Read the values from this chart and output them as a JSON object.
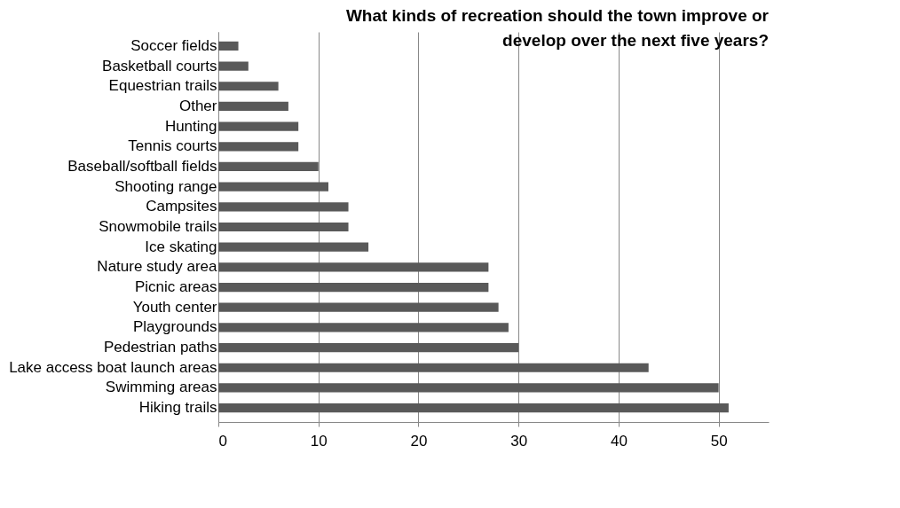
{
  "chart_data": {
    "type": "bar",
    "orientation": "horizontal",
    "title": "What kinds of recreation should the town improve or develop over the next five years?",
    "categories": [
      "Soccer fields",
      "Basketball courts",
      "Equestrian trails",
      "Other",
      "Hunting",
      "Tennis courts",
      "Baseball/softball fields",
      "Shooting range",
      "Campsites",
      "Snowmobile trails",
      "Ice skating",
      "Nature study area",
      "Picnic areas",
      "Youth center",
      "Playgrounds",
      "Pedestrian paths",
      "Lake access boat launch areas",
      "Swimming areas",
      "Hiking trails"
    ],
    "values": [
      2,
      3,
      6,
      7,
      8,
      8,
      10,
      11,
      13,
      13,
      15,
      27,
      27,
      28,
      29,
      30,
      43,
      50,
      51
    ],
    "color": "#595959",
    "xlim": [
      0,
      55
    ],
    "xticks": [
      0,
      10,
      20,
      30,
      40,
      50
    ],
    "grid": "x"
  }
}
